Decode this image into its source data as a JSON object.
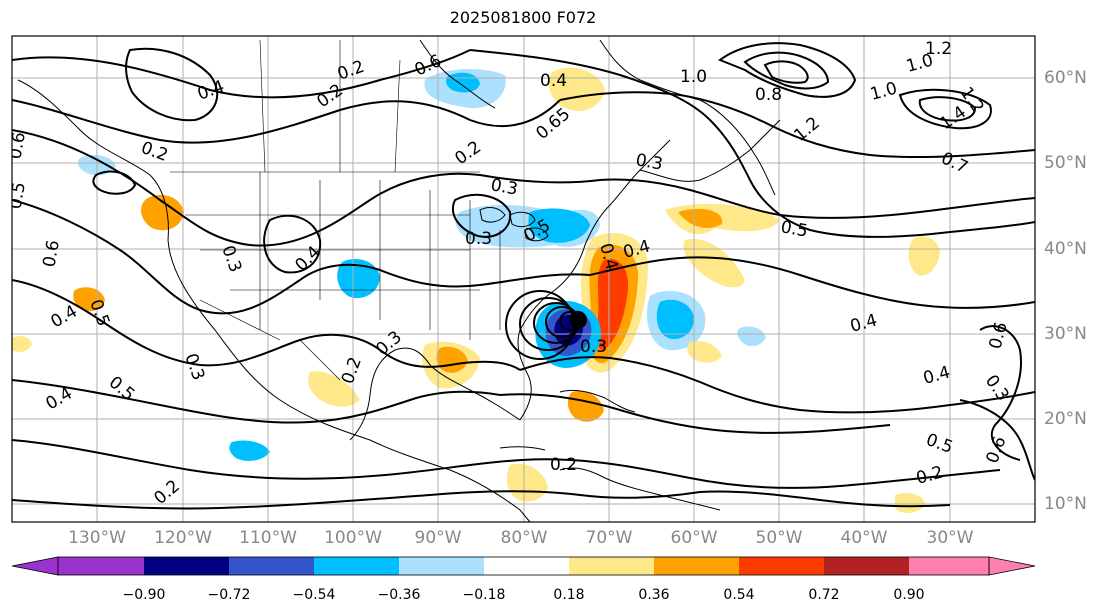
{
  "title": "2025081800 F072",
  "lon_labels": [
    "130°W",
    "120°W",
    "110°W",
    "100°W",
    "90°W",
    "80°W",
    "70°W",
    "60°W",
    "50°W",
    "40°W",
    "30°W"
  ],
  "lat_labels": [
    "60°N",
    "50°N",
    "40°N",
    "30°N",
    "20°N",
    "10°N"
  ],
  "colorbar": {
    "ticks": [
      "−0.90",
      "−0.72",
      "−0.54",
      "−0.36",
      "−0.18",
      "0.18",
      "0.36",
      "0.54",
      "0.72",
      "0.90"
    ],
    "colors": [
      "#9a33cc",
      "#000080",
      "#3355cc",
      "#00bfff",
      "#abe0ff",
      "#ffffff",
      "#ffe88a",
      "#ffa200",
      "#ff3c00",
      "#b22222",
      "#ff80b0"
    ]
  },
  "contour_labels": [
    "0.6",
    "0.4",
    "0.2",
    "0.4",
    "0.65",
    "1.0",
    "1.2",
    "1.0",
    "0.8",
    "1.0",
    "1.2",
    "1.4",
    "1.2",
    "0.7",
    "0.2",
    "0.3",
    "0.2",
    "0.6",
    "0.5",
    "0.6",
    "0.3",
    "0.3",
    "0.4",
    "0.3",
    "0.5",
    "0.4",
    "0.4",
    "0.5",
    "0.3",
    "0.4",
    "0.5",
    "0.4",
    "0.3",
    "0.2",
    "0.3",
    "0.2",
    "0.2",
    "0.4",
    "0.4",
    "0.5",
    "0.2",
    "0.6",
    "0.5",
    "0.3",
    "0.2",
    "0.6"
  ],
  "colors": {
    "contour": "#000000",
    "coast": "#000000",
    "grid": "#b0b0b0",
    "tick_label": "#888888"
  }
}
